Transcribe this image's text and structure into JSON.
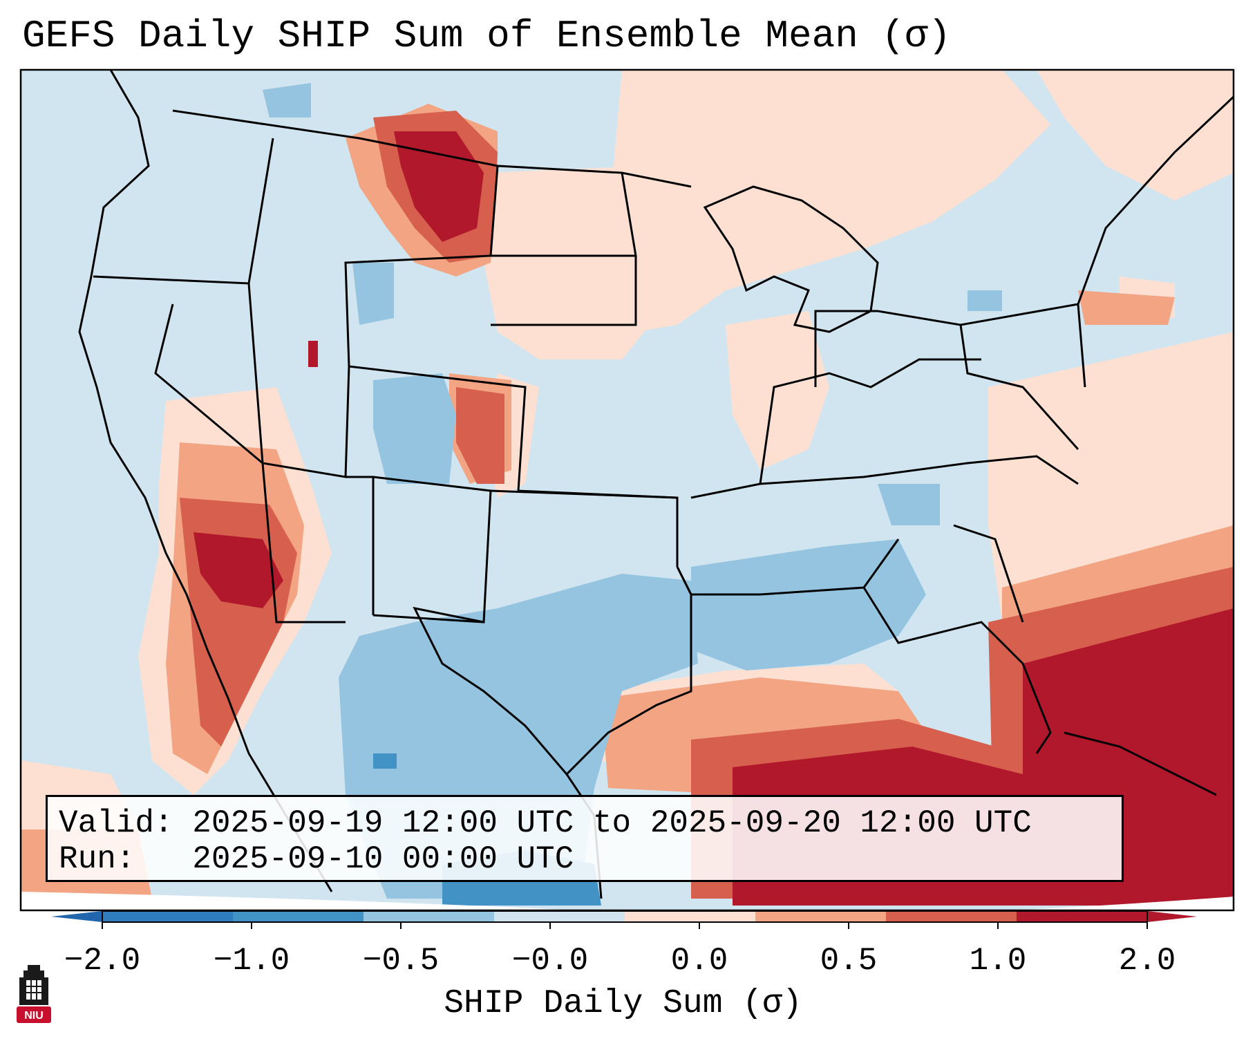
{
  "title": "GEFS Daily SHIP Sum of Ensemble Mean (σ)",
  "info": {
    "valid_label": "Valid:",
    "valid_value": "2025-09-19 12:00 UTC to 2025-09-20 12:00 UTC",
    "run_label": "Run:",
    "run_value": "2025-09-10 00:00 UTC"
  },
  "colorbar": {
    "label": "SHIP Daily Sum (σ)",
    "tick_labels": [
      "−2.0",
      "−1.0",
      "−0.5",
      "−0.0",
      "0.0",
      "0.5",
      "1.0",
      "2.0"
    ],
    "colors": [
      "#2f7cbf",
      "#4292c6",
      "#94c4df",
      "#d0e4f0",
      "#fde0d2",
      "#f2a483",
      "#d6604d",
      "#b2182b"
    ],
    "extend_low_color": "#2166ac",
    "extend_high_color": "#b2182b"
  },
  "map": {
    "ocean_color": "#d1e5f0",
    "projection": "Lambert Conformal, CONUS"
  },
  "logo": {
    "text": "NIU",
    "icon": "university-tower-icon",
    "color": "#c8102e"
  }
}
